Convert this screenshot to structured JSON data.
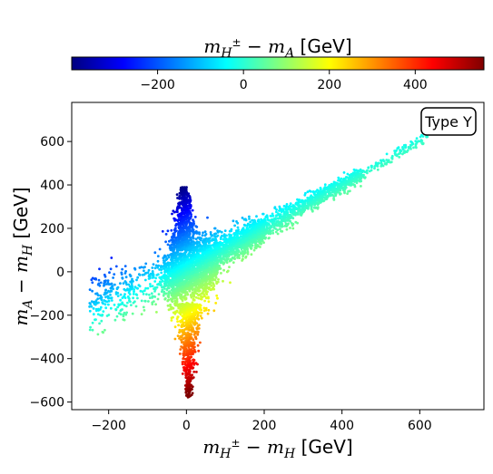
{
  "chart_data": {
    "type": "scatter",
    "annotation": "Type Y",
    "xlabel": {
      "base": "m",
      "sub1": "H",
      "sup1": "±",
      "minus": " − ",
      "sub2": "H",
      "unit": " [GeV]"
    },
    "ylabel": {
      "base": "m",
      "sub1": "A",
      "minus": " − ",
      "sub2": "H",
      "unit": " [GeV]"
    },
    "colorbar": {
      "label": {
        "base": "m",
        "sub1": "H",
        "sup1": "±",
        "minus": " − ",
        "sub2": "A",
        "unit": " [GeV]"
      },
      "colormap": "jet",
      "range": [
        -400,
        560
      ],
      "ticks": [
        -200,
        0,
        200,
        400
      ],
      "tick_labels": [
        "−200",
        "0",
        "200",
        "400"
      ]
    },
    "xlim": [
      -295,
      765
    ],
    "ylim": [
      -635,
      780
    ],
    "x_ticks": [
      -200,
      0,
      200,
      400,
      600
    ],
    "x_tick_labels": [
      "−200",
      "0",
      "200",
      "400",
      "600"
    ],
    "y_ticks": [
      -600,
      -400,
      -200,
      0,
      200,
      400,
      600
    ],
    "y_tick_labels": [
      "−600",
      "−400",
      "−200",
      "0",
      "200",
      "400",
      "600"
    ],
    "grid": false,
    "color_encodes": "x - y",
    "series_description": [
      {
        "region": "diagonal band",
        "x_range": [
          -250,
          620
        ],
        "y_equals_x_offset": [
          -80,
          80
        ]
      },
      {
        "region": "upper spike near x=0",
        "x_range": [
          -30,
          25
        ],
        "y_range": [
          100,
          390
        ]
      },
      {
        "region": "lower spike near x=0",
        "x_range": [
          -20,
          25
        ],
        "y_range": [
          -580,
          -150
        ]
      }
    ]
  }
}
